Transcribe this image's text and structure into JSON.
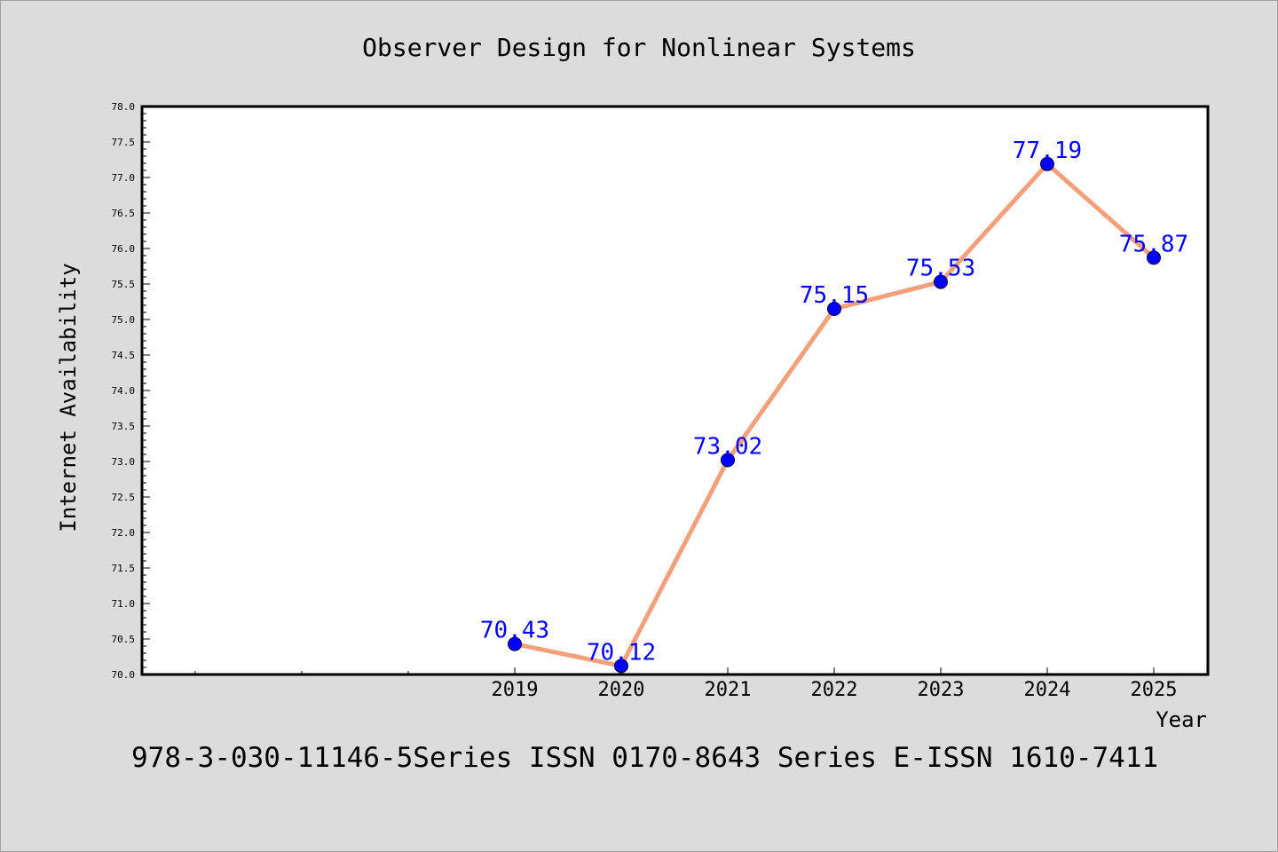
{
  "chart_data": {
    "type": "line",
    "title": "Observer Design for Nonlinear Systems",
    "xlabel": "Year",
    "ylabel": "Internet Availability",
    "categories": [
      "2019",
      "2020",
      "2021",
      "2022",
      "2023",
      "2024",
      "2025"
    ],
    "series": [
      {
        "values": [
          70.43,
          70.12,
          73.02,
          75.15,
          75.53,
          77.19,
          75.87
        ]
      }
    ],
    "data_labels": [
      "70.43",
      "70.12",
      "73.02",
      "75.15",
      "75.53",
      "77.19",
      "75.87"
    ],
    "ylim": [
      70.0,
      78.0
    ],
    "yticks": [
      "70.0",
      "70.5",
      "71.0",
      "71.5",
      "72.0",
      "72.5",
      "73.0",
      "73.5",
      "74.0",
      "74.5",
      "75.0",
      "75.5",
      "76.0",
      "76.5",
      "77.0",
      "77.5",
      "78.0"
    ],
    "grid": false,
    "legend": "none",
    "colors": {
      "line": "#f4a07a",
      "marker": "#0000ff",
      "label": "#0000ff",
      "background": "#dcdcdc"
    }
  },
  "footer": "978-3-030-11146-5Series ISSN 0170-8643 Series E-ISSN 1610-7411"
}
